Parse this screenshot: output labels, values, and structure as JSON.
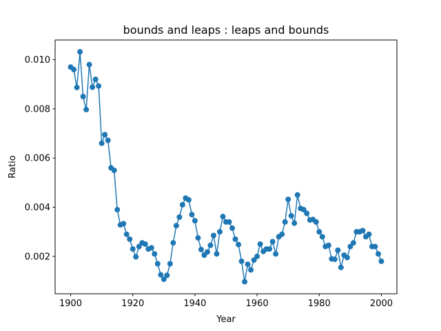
{
  "chart_data": {
    "type": "line",
    "title": "bounds and leaps : leaps and bounds",
    "xlabel": "Year",
    "ylabel": "Ratio",
    "x": [
      1900,
      1901,
      1902,
      1903,
      1904,
      1905,
      1906,
      1907,
      1908,
      1909,
      1910,
      1911,
      1912,
      1913,
      1914,
      1915,
      1916,
      1917,
      1918,
      1919,
      1920,
      1921,
      1922,
      1923,
      1924,
      1925,
      1926,
      1927,
      1928,
      1929,
      1930,
      1931,
      1932,
      1933,
      1934,
      1935,
      1936,
      1937,
      1938,
      1939,
      1940,
      1941,
      1942,
      1943,
      1944,
      1945,
      1946,
      1947,
      1948,
      1949,
      1950,
      1951,
      1952,
      1953,
      1954,
      1955,
      1956,
      1957,
      1958,
      1959,
      1960,
      1961,
      1962,
      1963,
      1964,
      1965,
      1966,
      1967,
      1968,
      1969,
      1970,
      1971,
      1972,
      1973,
      1974,
      1975,
      1976,
      1977,
      1978,
      1979,
      1980,
      1981,
      1982,
      1983,
      1984,
      1985,
      1986,
      1987,
      1988,
      1989,
      1990,
      1991,
      1992,
      1993,
      1994,
      1995,
      1996,
      1997,
      1998,
      1999,
      2000
    ],
    "series": [
      {
        "name": "Ratio",
        "color": "#1f77b4",
        "values": [
          0.0097,
          0.0096,
          0.00887,
          0.01032,
          0.0085,
          0.00797,
          0.0098,
          0.00888,
          0.0092,
          0.00893,
          0.0066,
          0.00695,
          0.00672,
          0.0056,
          0.0055,
          0.0039,
          0.00328,
          0.00333,
          0.0029,
          0.0027,
          0.0023,
          0.00198,
          0.0024,
          0.00255,
          0.0025,
          0.0023,
          0.00235,
          0.0021,
          0.0017,
          0.00125,
          0.00107,
          0.00123,
          0.0017,
          0.00255,
          0.00325,
          0.0036,
          0.0041,
          0.00437,
          0.0043,
          0.0037,
          0.00345,
          0.00275,
          0.00228,
          0.00205,
          0.00218,
          0.00245,
          0.00285,
          0.0021,
          0.003,
          0.00362,
          0.0034,
          0.0034,
          0.00315,
          0.0027,
          0.00248,
          0.0018,
          0.00097,
          0.00168,
          0.00145,
          0.00185,
          0.002,
          0.0025,
          0.0022,
          0.0023,
          0.0023,
          0.0026,
          0.0021,
          0.0028,
          0.0029,
          0.0034,
          0.00432,
          0.00365,
          0.00335,
          0.0045,
          0.00395,
          0.0039,
          0.00375,
          0.00348,
          0.0035,
          0.0034,
          0.003,
          0.0028,
          0.0024,
          0.00245,
          0.0019,
          0.00188,
          0.00225,
          0.00155,
          0.00205,
          0.00195,
          0.0024,
          0.00255,
          0.003,
          0.003,
          0.00305,
          0.0028,
          0.0029,
          0.0024,
          0.0024,
          0.0021,
          0.0018
        ]
      }
    ],
    "xlim": [
      1895,
      2005
    ],
    "ylim": [
      0.00048,
      0.0108
    ],
    "xticks": [
      1900,
      1920,
      1940,
      1960,
      1980,
      2000
    ],
    "yticks": [
      0.002,
      0.004,
      0.006,
      0.008,
      {
        "value": 0.01,
        "label": "0.010"
      }
    ],
    "grid": false,
    "markers": true
  }
}
